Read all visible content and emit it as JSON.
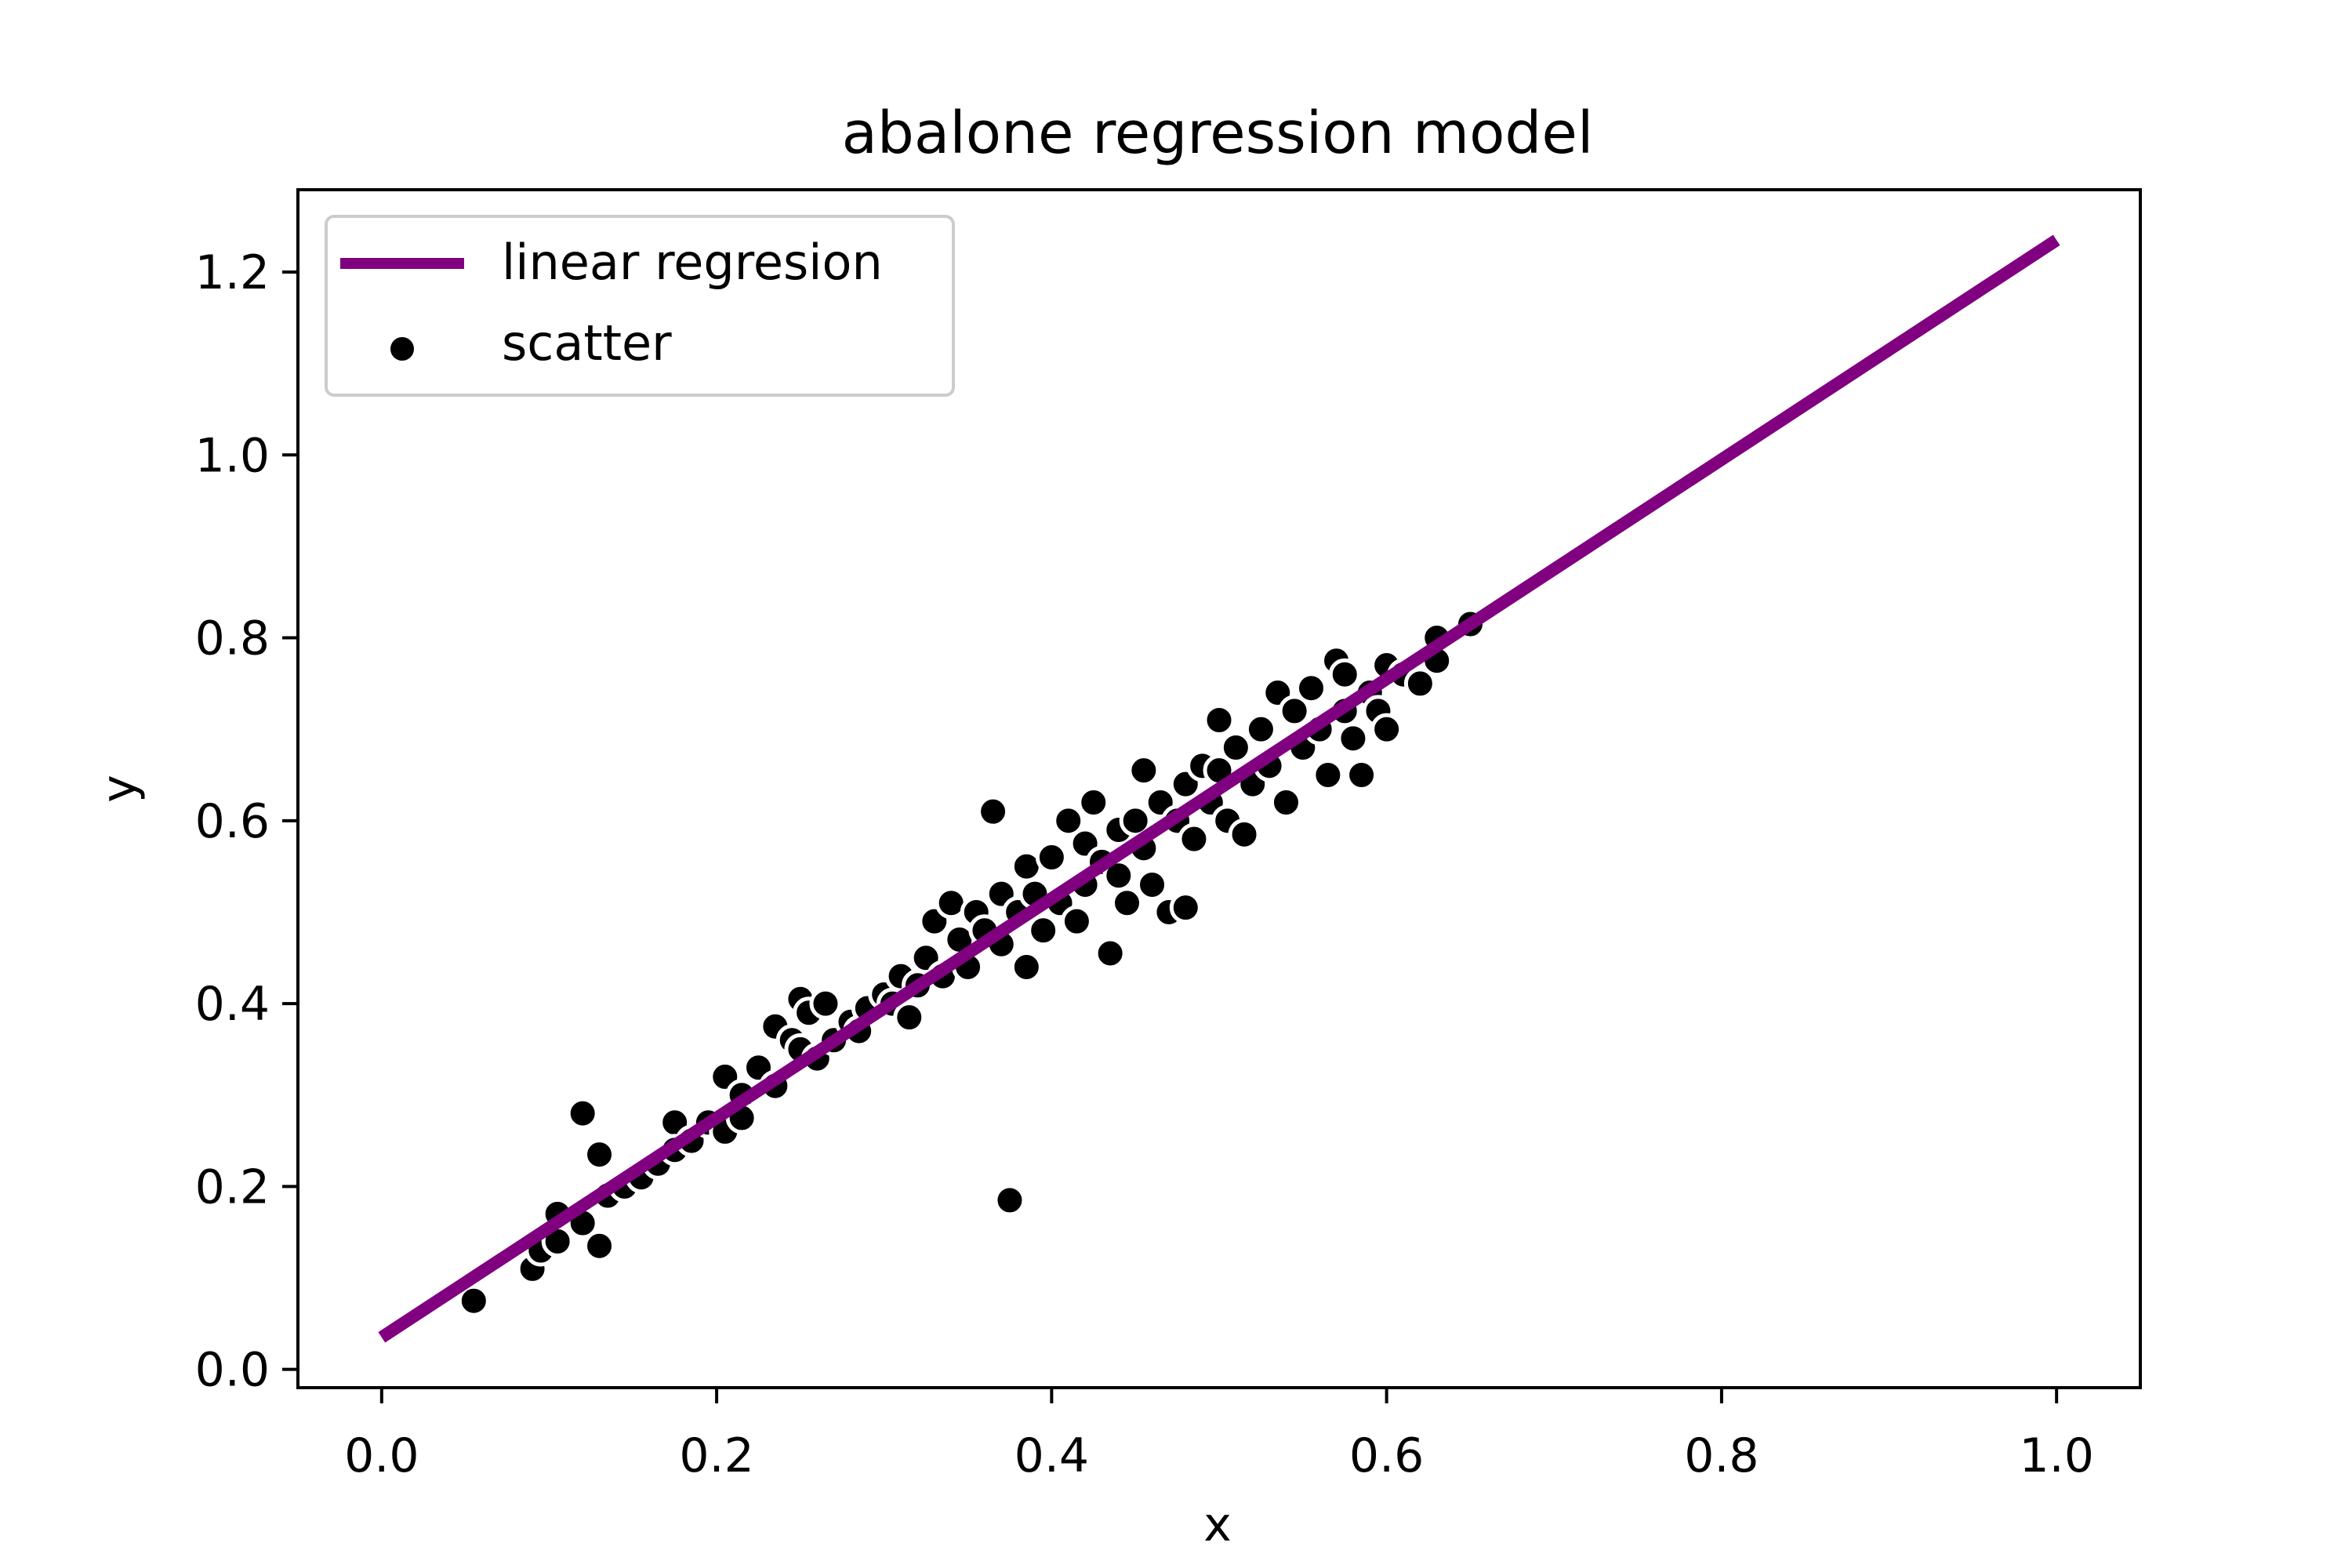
{
  "chart_data": {
    "type": "scatter",
    "title": "abalone regression model",
    "xlabel": "x",
    "ylabel": "y",
    "xlim": [
      -0.05,
      1.05
    ],
    "ylim": [
      -0.02,
      1.29
    ],
    "xticks": [
      "0.0",
      "0.2",
      "0.4",
      "0.6",
      "0.8",
      "1.0"
    ],
    "xtick_values": [
      0.0,
      0.2,
      0.4,
      0.6,
      0.8,
      1.0
    ],
    "yticks": [
      "0.0",
      "0.2",
      "0.4",
      "0.6",
      "0.8",
      "1.0",
      "1.2"
    ],
    "ytick_values": [
      0.0,
      0.2,
      0.4,
      0.6,
      0.8,
      1.0,
      1.2
    ],
    "grid": false,
    "legend_position": "top-left",
    "series": [
      {
        "name": "linear regresion",
        "kind": "line",
        "color": "#800080",
        "x": [
          0.0,
          1.0
        ],
        "y": [
          0.035,
          1.235
        ]
      },
      {
        "name": "scatter",
        "kind": "scatter",
        "color": "#000000",
        "edgecolor": "#ffffff",
        "points": [
          [
            0.055,
            0.075
          ],
          [
            0.09,
            0.11
          ],
          [
            0.095,
            0.13
          ],
          [
            0.105,
            0.17
          ],
          [
            0.105,
            0.14
          ],
          [
            0.12,
            0.28
          ],
          [
            0.12,
            0.16
          ],
          [
            0.13,
            0.235
          ],
          [
            0.13,
            0.135
          ],
          [
            0.135,
            0.19
          ],
          [
            0.145,
            0.2
          ],
          [
            0.155,
            0.21
          ],
          [
            0.165,
            0.225
          ],
          [
            0.175,
            0.27
          ],
          [
            0.175,
            0.24
          ],
          [
            0.185,
            0.25
          ],
          [
            0.195,
            0.27
          ],
          [
            0.205,
            0.32
          ],
          [
            0.205,
            0.26
          ],
          [
            0.215,
            0.3
          ],
          [
            0.215,
            0.275
          ],
          [
            0.225,
            0.33
          ],
          [
            0.235,
            0.375
          ],
          [
            0.235,
            0.31
          ],
          [
            0.245,
            0.36
          ],
          [
            0.25,
            0.405
          ],
          [
            0.255,
            0.39
          ],
          [
            0.25,
            0.35
          ],
          [
            0.26,
            0.34
          ],
          [
            0.265,
            0.4
          ],
          [
            0.27,
            0.36
          ],
          [
            0.28,
            0.38
          ],
          [
            0.285,
            0.37
          ],
          [
            0.29,
            0.395
          ],
          [
            0.3,
            0.41
          ],
          [
            0.305,
            0.4
          ],
          [
            0.31,
            0.43
          ],
          [
            0.315,
            0.385
          ],
          [
            0.32,
            0.42
          ],
          [
            0.325,
            0.45
          ],
          [
            0.33,
            0.49
          ],
          [
            0.335,
            0.43
          ],
          [
            0.34,
            0.51
          ],
          [
            0.345,
            0.47
          ],
          [
            0.35,
            0.44
          ],
          [
            0.355,
            0.5
          ],
          [
            0.36,
            0.48
          ],
          [
            0.365,
            0.61
          ],
          [
            0.37,
            0.52
          ],
          [
            0.37,
            0.465
          ],
          [
            0.375,
            0.185
          ],
          [
            0.38,
            0.5
          ],
          [
            0.385,
            0.55
          ],
          [
            0.385,
            0.44
          ],
          [
            0.39,
            0.52
          ],
          [
            0.395,
            0.48
          ],
          [
            0.4,
            0.56
          ],
          [
            0.405,
            0.51
          ],
          [
            0.41,
            0.6
          ],
          [
            0.415,
            0.49
          ],
          [
            0.42,
            0.575
          ],
          [
            0.42,
            0.53
          ],
          [
            0.425,
            0.62
          ],
          [
            0.43,
            0.555
          ],
          [
            0.435,
            0.455
          ],
          [
            0.44,
            0.59
          ],
          [
            0.44,
            0.54
          ],
          [
            0.445,
            0.51
          ],
          [
            0.45,
            0.6
          ],
          [
            0.455,
            0.655
          ],
          [
            0.455,
            0.57
          ],
          [
            0.46,
            0.53
          ],
          [
            0.465,
            0.62
          ],
          [
            0.47,
            0.5
          ],
          [
            0.475,
            0.6
          ],
          [
            0.48,
            0.64
          ],
          [
            0.48,
            0.505
          ],
          [
            0.485,
            0.58
          ],
          [
            0.49,
            0.66
          ],
          [
            0.495,
            0.62
          ],
          [
            0.5,
            0.71
          ],
          [
            0.5,
            0.655
          ],
          [
            0.505,
            0.6
          ],
          [
            0.51,
            0.68
          ],
          [
            0.515,
            0.585
          ],
          [
            0.52,
            0.64
          ],
          [
            0.525,
            0.7
          ],
          [
            0.53,
            0.66
          ],
          [
            0.535,
            0.74
          ],
          [
            0.54,
            0.62
          ],
          [
            0.545,
            0.72
          ],
          [
            0.55,
            0.68
          ],
          [
            0.555,
            0.745
          ],
          [
            0.56,
            0.7
          ],
          [
            0.565,
            0.65
          ],
          [
            0.57,
            0.775
          ],
          [
            0.575,
            0.72
          ],
          [
            0.575,
            0.76
          ],
          [
            0.58,
            0.69
          ],
          [
            0.585,
            0.65
          ],
          [
            0.59,
            0.74
          ],
          [
            0.595,
            0.72
          ],
          [
            0.6,
            0.77
          ],
          [
            0.6,
            0.7
          ],
          [
            0.61,
            0.76
          ],
          [
            0.62,
            0.75
          ],
          [
            0.63,
            0.8
          ],
          [
            0.63,
            0.775
          ],
          [
            0.65,
            0.815
          ]
        ]
      }
    ]
  }
}
